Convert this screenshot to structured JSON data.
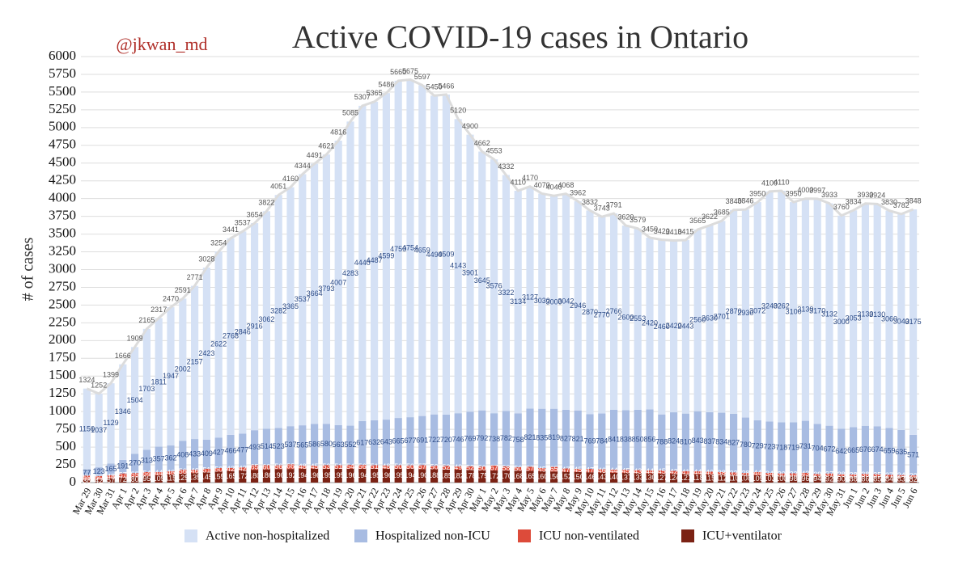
{
  "chart_data": {
    "type": "stacked_bar",
    "title": "Active COVID-19 cases in Ontario",
    "annotation": "@jkwan_md",
    "y_label": "# of cases",
    "categories": [
      "Mar 29",
      "Mar 30",
      "Mar 31",
      "Apr 1",
      "Apr 2",
      "Apr 3",
      "Apr 4",
      "Apr 5",
      "Apr 6",
      "Apr 7",
      "Apr 8",
      "Apr 9",
      "Apr 10",
      "Apr 11",
      "Apr 12",
      "Apr 13",
      "Apr 14",
      "Apr 15",
      "Apr 16",
      "Apr 17",
      "Apr 18",
      "Apr 19",
      "Apr 20",
      "Apr 21",
      "Apr 22",
      "Apr 23",
      "Apr 24",
      "Apr 25",
      "Apr 26",
      "Apr 27",
      "Apr 28",
      "Apr 29",
      "Apr 30",
      "May 1",
      "May 2",
      "May 3",
      "May 4",
      "May 5",
      "May 6",
      "May 7",
      "May 8",
      "May 9",
      "May 10",
      "May 11",
      "May 12",
      "May 13",
      "May 14",
      "May 15",
      "May 16",
      "May 17",
      "May 18",
      "May 19",
      "May 20",
      "May 21",
      "May 22",
      "May 23",
      "May 24",
      "May 25",
      "May 26",
      "May 27",
      "May 28",
      "May 29",
      "May 30",
      "May 31",
      "Jun 1",
      "Jun 2",
      "Jun 3",
      "Jun 4",
      "Jun 5",
      "Jun 6"
    ],
    "series": [
      {
        "name": "Active non-hospitalized",
        "color": "#d5e1f5",
        "label_color": "#2b4a86",
        "values": [
          1150,
          1037,
          1129,
          1346,
          1504,
          1703,
          1811,
          1947,
          2002,
          2157,
          2423,
          2622,
          2768,
          2846,
          2916,
          3062,
          3282,
          3365,
          3537,
          3664,
          3793,
          4007,
          4283,
          4440,
          4487,
          4599,
          4750,
          4754,
          4659,
          4490,
          4509,
          4143,
          3901,
          3645,
          3576,
          3322,
          3134,
          3127,
          3030,
          3000,
          3042,
          2946,
          2870,
          2770,
          2766,
          2600,
          2553,
          2420,
          2460,
          2420,
          2443,
          2560,
          2630,
          2701,
          2870,
          2930,
          3072,
          3240,
          3262,
          3100,
          3130,
          3170,
          3132,
          3000,
          3053,
          3130,
          3130,
          3060,
          3040,
          3175
        ]
      },
      {
        "name": "Hospitalized non-ICU",
        "color": "#a8bce2",
        "label_color": "#2b4a86",
        "values": [
          77,
          123,
          165,
          191,
          270,
          313,
          357,
          362,
          408,
          433,
          409,
          427,
          466,
          477,
          493,
          514,
          523,
          537,
          565,
          586,
          580,
          563,
          552,
          617,
          632,
          643,
          665,
          677,
          691,
          722,
          720,
          746,
          769,
          792,
          738,
          782,
          758,
          821,
          835,
          819,
          827,
          821,
          769,
          784,
          841,
          838,
          850,
          856,
          788,
          824,
          810,
          843,
          837,
          834,
          827,
          780,
          729,
          723,
          718,
          719,
          731,
          704,
          672,
          642,
          665,
          676,
          674,
          659,
          635,
          571
        ]
      },
      {
        "name": "ICU non-ventilated",
        "color": "#dd4b3a",
        "label_color": "#ffffff",
        "values": [
          59,
          50,
          48,
          57,
          55,
          54,
          44,
          46,
          56,
          46,
          51,
          50,
          42,
          42,
          65,
          60,
          56,
          66,
          48,
          45,
          53,
          51,
          54,
          56,
          51,
          48,
          50,
          50,
          57,
          50,
          52,
          49,
          52,
          50,
          67,
          58,
          50,
          57,
          45,
          65,
          47,
          45,
          47,
          46,
          44,
          45,
          43,
          44,
          45,
          42,
          41,
          44,
          40,
          38,
          33,
          28,
          44,
          34,
          30,
          33,
          43,
          29,
          37,
          28,
          28,
          38,
          35,
          27,
          24,
          20
        ]
      },
      {
        "name": "ICU+ventilator",
        "color": "#7b2214",
        "label_color": "#ffffff",
        "values": [
          38,
          42,
          57,
          72,
          80,
          95,
          105,
          115,
          125,
          135,
          145,
          155,
          165,
          172,
          180,
          186,
          190,
          192,
          194,
          196,
          195,
          195,
          196,
          194,
          195,
          196,
          195,
          194,
          190,
          188,
          185,
          182,
          178,
          175,
          172,
          170,
          168,
          165,
          160,
          156,
          152,
          150,
          146,
          143,
          140,
          137,
          133,
          130,
          127,
          124,
          121,
          118,
          115,
          112,
          110,
          108,
          105,
          103,
          100,
          98,
          96,
          94,
          92,
          90,
          88,
          86,
          85,
          84,
          83,
          82
        ]
      }
    ],
    "totals": [
      1324,
      1252,
      1399,
      1666,
      1909,
      2165,
      2317,
      2470,
      2591,
      2771,
      3028,
      3254,
      3441,
      3537,
      3654,
      3822,
      4051,
      4160,
      4344,
      4491,
      4621,
      4816,
      5085,
      5307,
      5365,
      5486,
      5660,
      5675,
      5597,
      5450,
      5466,
      5120,
      4900,
      4662,
      4553,
      4332,
      4110,
      4170,
      4070,
      4040,
      4068,
      3962,
      3832,
      3743,
      3791,
      3620,
      3579,
      3450,
      3420,
      3410,
      3415,
      3565,
      3622,
      3685,
      3840,
      3846,
      3950,
      4100,
      4110,
      3950,
      4000,
      3997,
      3933,
      3760,
      3834,
      3930,
      3924,
      3830,
      3782,
      3848
    ],
    "totals_color": "#dcdcdc",
    "ylim": [
      0,
      6000
    ],
    "yticks": [
      0,
      250,
      500,
      750,
      1000,
      1250,
      1500,
      1750,
      2000,
      2250,
      2500,
      2750,
      3000,
      3250,
      3500,
      3750,
      4000,
      4250,
      4500,
      4750,
      5000,
      5250,
      5500,
      5750,
      6000
    ],
    "grid": true
  }
}
